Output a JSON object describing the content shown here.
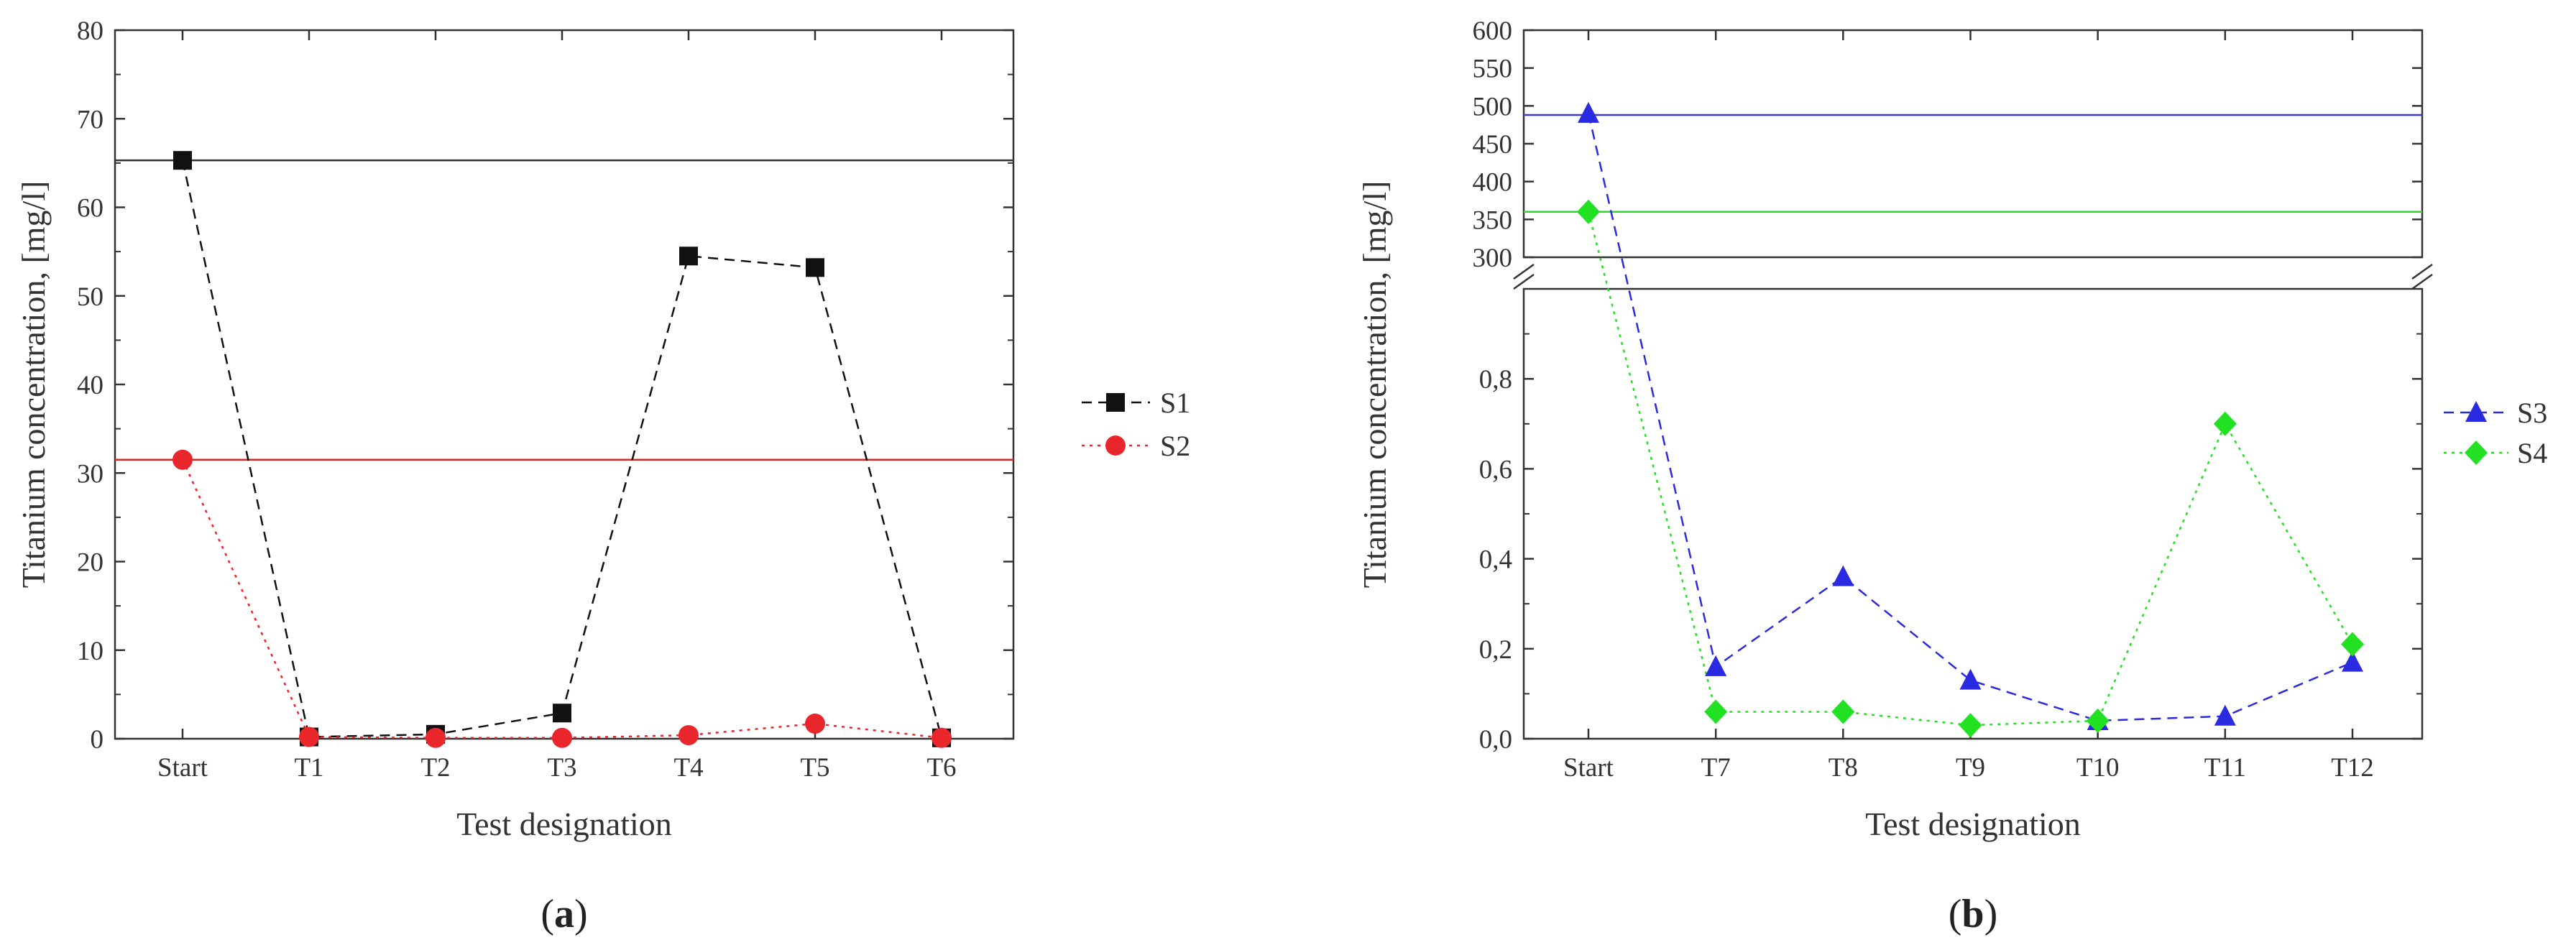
{
  "chart_data": [
    {
      "panel": "a",
      "type": "line",
      "xlabel": "Test designation",
      "ylabel": "Titanium concentration, [mg/l]",
      "categories": [
        "Start",
        "T1",
        "T2",
        "T3",
        "T4",
        "T5",
        "T6"
      ],
      "ylim": [
        0,
        80
      ],
      "yticks": [
        "0",
        "10",
        "20",
        "30",
        "40",
        "50",
        "60",
        "70",
        "80"
      ],
      "series": [
        {
          "name": "S1",
          "values": [
            65.3,
            0.2,
            0.5,
            2.9,
            54.5,
            53.2,
            0.1
          ],
          "color": "#111111",
          "marker": "square",
          "dash": "dashed"
        },
        {
          "name": "S2",
          "values": [
            31.5,
            0.2,
            0.1,
            0.1,
            0.4,
            1.7,
            0.1
          ],
          "color": "#e8262b",
          "marker": "circle",
          "dash": "dotted"
        }
      ],
      "reference_lines": [
        {
          "y": 65.3,
          "color": "#333333"
        },
        {
          "y": 31.5,
          "color": "#d92a2a"
        }
      ],
      "grid": false,
      "legend": "right"
    },
    {
      "panel": "b",
      "type": "line",
      "xlabel": "Test designation",
      "ylabel": "Titanium concentration, [mg/l]",
      "categories": [
        "Start",
        "T7",
        "T8",
        "T9",
        "T10",
        "T11",
        "T12"
      ],
      "broken_axis": true,
      "ylim_lower": [
        0,
        1.0
      ],
      "yticks_lower": [
        "0,0",
        "0,2",
        "0,4",
        "0,6",
        "0,8"
      ],
      "ylim_upper": [
        300,
        600
      ],
      "yticks_upper": [
        "300",
        "350",
        "400",
        "450",
        "500",
        "550",
        "600"
      ],
      "series": [
        {
          "name": "S3",
          "values": [
            490,
            0.16,
            0.36,
            0.13,
            0.04,
            0.05,
            0.17
          ],
          "color": "#2a2ae0",
          "marker": "triangle",
          "dash": "dashed"
        },
        {
          "name": "S4",
          "values": [
            360,
            0.06,
            0.06,
            0.03,
            0.04,
            0.7,
            0.21
          ],
          "color": "#22e022",
          "marker": "diamond",
          "dash": "dotted"
        }
      ],
      "reference_lines": [
        {
          "y": 488,
          "color": "#3a3ad8"
        },
        {
          "y": 360,
          "color": "#2ed82e"
        }
      ],
      "grid": false,
      "legend": "right"
    }
  ],
  "labels": {
    "a": "a",
    "b": "b"
  }
}
